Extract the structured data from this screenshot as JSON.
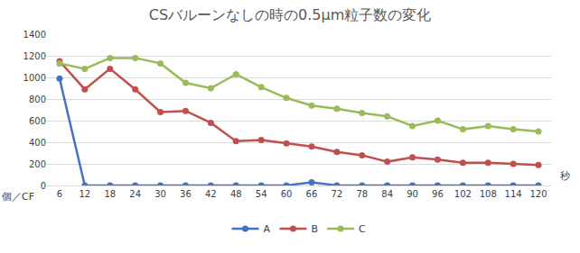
{
  "chart_data": {
    "type": "line",
    "title": "CSバルーンなしの時の0.5μm粒子数の変化",
    "x_label": "秒",
    "y_label": "個／CF",
    "categories": [
      "6",
      "12",
      "18",
      "24",
      "30",
      "36",
      "42",
      "48",
      "54",
      "60",
      "66",
      "72",
      "78",
      "84",
      "90",
      "96",
      "102",
      "108",
      "114",
      "120"
    ],
    "series": [
      {
        "name": "A",
        "color": "#4472c4",
        "values": [
          990,
          0,
          0,
          0,
          0,
          0,
          0,
          0,
          0,
          0,
          30,
          0,
          0,
          0,
          0,
          0,
          0,
          0,
          0,
          0
        ]
      },
      {
        "name": "B",
        "color": "#c0504d",
        "values": [
          1150,
          890,
          1080,
          890,
          680,
          690,
          580,
          410,
          420,
          390,
          360,
          310,
          280,
          220,
          260,
          240,
          210,
          210,
          200,
          190
        ]
      },
      {
        "name": "C",
        "color": "#9bbb59",
        "values": [
          1130,
          1080,
          1180,
          1180,
          1130,
          950,
          900,
          1030,
          910,
          810,
          740,
          710,
          670,
          640,
          550,
          600,
          520,
          550,
          520,
          500
        ]
      }
    ],
    "marker": "circle",
    "ylim": [
      0,
      1400
    ],
    "yticks": [
      0,
      200,
      400,
      600,
      800,
      1000,
      1200,
      1400
    ],
    "grid": true,
    "legend": "bottom"
  }
}
